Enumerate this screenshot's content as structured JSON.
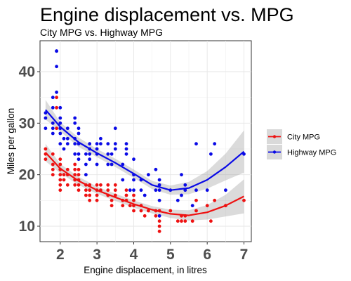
{
  "chart_data": {
    "type": "scatter",
    "title": "Engine displacement vs. MPG",
    "subtitle": "City MPG vs. Highway MPG",
    "xlabel": "Engine displacement, in litres",
    "ylabel": "Miles per gallon",
    "xlim": [
      1.45,
      7.2
    ],
    "ylim": [
      7,
      46
    ],
    "x_ticks": [
      2,
      3,
      4,
      5,
      6,
      7
    ],
    "y_ticks": [
      10,
      20,
      30,
      40
    ],
    "grid": true,
    "smooth": "loess with confidence band",
    "legend_position": "right",
    "series": [
      {
        "name": "City MPG",
        "color": "#ee1111",
        "points": [
          [
            1.6,
            24
          ],
          [
            1.6,
            23
          ],
          [
            1.6,
            25
          ],
          [
            1.8,
            21
          ],
          [
            1.8,
            20
          ],
          [
            1.8,
            22
          ],
          [
            1.8,
            24
          ],
          [
            1.9,
            33
          ],
          [
            1.9,
            35
          ],
          [
            1.9,
            29
          ],
          [
            2.0,
            21
          ],
          [
            2.0,
            19
          ],
          [
            2.0,
            20
          ],
          [
            2.0,
            22
          ],
          [
            2.0,
            23
          ],
          [
            2.0,
            18
          ],
          [
            2.0,
            17
          ],
          [
            2.0,
            21
          ],
          [
            2.1,
            20
          ],
          [
            2.1,
            19
          ],
          [
            2.2,
            21
          ],
          [
            2.2,
            20
          ],
          [
            2.2,
            18
          ],
          [
            2.4,
            21
          ],
          [
            2.4,
            20
          ],
          [
            2.4,
            19
          ],
          [
            2.4,
            18
          ],
          [
            2.4,
            22
          ],
          [
            2.5,
            19
          ],
          [
            2.5,
            20
          ],
          [
            2.5,
            18
          ],
          [
            2.5,
            21
          ],
          [
            2.5,
            17
          ],
          [
            2.7,
            18
          ],
          [
            2.7,
            17
          ],
          [
            2.7,
            16
          ],
          [
            2.8,
            17
          ],
          [
            2.8,
            16
          ],
          [
            2.8,
            18
          ],
          [
            2.8,
            15
          ],
          [
            3.0,
            17
          ],
          [
            3.0,
            16
          ],
          [
            3.0,
            18
          ],
          [
            3.0,
            15
          ],
          [
            3.1,
            18
          ],
          [
            3.1,
            17
          ],
          [
            3.3,
            16
          ],
          [
            3.3,
            17
          ],
          [
            3.3,
            18
          ],
          [
            3.4,
            15
          ],
          [
            3.4,
            14
          ],
          [
            3.5,
            16
          ],
          [
            3.5,
            17
          ],
          [
            3.5,
            18
          ],
          [
            3.7,
            15
          ],
          [
            3.7,
            14
          ],
          [
            3.8,
            16
          ],
          [
            3.8,
            17
          ],
          [
            3.8,
            15
          ],
          [
            3.9,
            14
          ],
          [
            4.0,
            14
          ],
          [
            4.0,
            15
          ],
          [
            4.0,
            16
          ],
          [
            4.0,
            13
          ],
          [
            4.2,
            14
          ],
          [
            4.2,
            13
          ],
          [
            4.3,
            12
          ],
          [
            4.4,
            13
          ],
          [
            4.6,
            12
          ],
          [
            4.6,
            13
          ],
          [
            4.7,
            11
          ],
          [
            4.7,
            9
          ],
          [
            4.7,
            12
          ],
          [
            4.7,
            13
          ],
          [
            4.7,
            10
          ],
          [
            5.0,
            13
          ],
          [
            5.2,
            11
          ],
          [
            5.3,
            11
          ],
          [
            5.3,
            12
          ],
          [
            5.4,
            11
          ],
          [
            5.4,
            12
          ],
          [
            5.6,
            11
          ],
          [
            5.7,
            13
          ],
          [
            5.7,
            15
          ],
          [
            6.0,
            14
          ],
          [
            6.1,
            11
          ],
          [
            6.2,
            15
          ],
          [
            6.5,
            14
          ],
          [
            7.0,
            15
          ]
        ],
        "trend": [
          [
            1.6,
            24.3
          ],
          [
            2.0,
            21.2
          ],
          [
            2.5,
            18.8
          ],
          [
            3.0,
            17.0
          ],
          [
            3.5,
            15.6
          ],
          [
            4.0,
            14.3
          ],
          [
            4.5,
            13.2
          ],
          [
            5.0,
            12.4
          ],
          [
            5.5,
            12.1
          ],
          [
            6.0,
            12.7
          ],
          [
            6.5,
            14.0
          ],
          [
            7.0,
            15.8
          ]
        ],
        "band": [
          [
            1.6,
            22.6,
            26.0
          ],
          [
            2.0,
            20.3,
            22.1
          ],
          [
            2.5,
            18.0,
            19.6
          ],
          [
            3.0,
            16.3,
            17.7
          ],
          [
            3.5,
            14.9,
            16.3
          ],
          [
            4.0,
            13.6,
            15.0
          ],
          [
            4.5,
            12.5,
            13.9
          ],
          [
            5.0,
            11.6,
            13.2
          ],
          [
            5.5,
            11.1,
            13.1
          ],
          [
            6.0,
            11.3,
            14.1
          ],
          [
            6.5,
            11.9,
            16.1
          ],
          [
            7.0,
            12.5,
            19.1
          ]
        ]
      },
      {
        "name": "Highway MPG",
        "color": "#0a0ae6",
        "points": [
          [
            1.6,
            32
          ],
          [
            1.6,
            31
          ],
          [
            1.6,
            29
          ],
          [
            1.8,
            28
          ],
          [
            1.8,
            29
          ],
          [
            1.8,
            30
          ],
          [
            1.8,
            33
          ],
          [
            1.8,
            35
          ],
          [
            1.9,
            44
          ],
          [
            1.9,
            41
          ],
          [
            1.9,
            36
          ],
          [
            1.9,
            44
          ],
          [
            2.0,
            29
          ],
          [
            2.0,
            30
          ],
          [
            2.0,
            31
          ],
          [
            2.0,
            26
          ],
          [
            2.0,
            28
          ],
          [
            2.0,
            33
          ],
          [
            2.1,
            27
          ],
          [
            2.1,
            25
          ],
          [
            2.2,
            26
          ],
          [
            2.2,
            27
          ],
          [
            2.2,
            29
          ],
          [
            2.4,
            26
          ],
          [
            2.4,
            27
          ],
          [
            2.4,
            30
          ],
          [
            2.4,
            31
          ],
          [
            2.4,
            24
          ],
          [
            2.5,
            26
          ],
          [
            2.5,
            28
          ],
          [
            2.5,
            29
          ],
          [
            2.5,
            24
          ],
          [
            2.5,
            23
          ],
          [
            2.7,
            24
          ],
          [
            2.7,
            20
          ],
          [
            2.7,
            22
          ],
          [
            2.8,
            24
          ],
          [
            2.8,
            26
          ],
          [
            2.8,
            25
          ],
          [
            2.8,
            23
          ],
          [
            3.0,
            26
          ],
          [
            3.0,
            25
          ],
          [
            3.0,
            24
          ],
          [
            3.0,
            22
          ],
          [
            3.1,
            26
          ],
          [
            3.1,
            27
          ],
          [
            3.3,
            24
          ],
          [
            3.3,
            22
          ],
          [
            3.3,
            26
          ],
          [
            3.4,
            24
          ],
          [
            3.4,
            22
          ],
          [
            3.5,
            25
          ],
          [
            3.5,
            26
          ],
          [
            3.5,
            29
          ],
          [
            3.7,
            19
          ],
          [
            3.7,
            22
          ],
          [
            3.8,
            26
          ],
          [
            3.8,
            25
          ],
          [
            3.8,
            24
          ],
          [
            3.9,
            17
          ],
          [
            4.0,
            17
          ],
          [
            4.0,
            19
          ],
          [
            4.0,
            20
          ],
          [
            4.0,
            23
          ],
          [
            4.2,
            17
          ],
          [
            4.2,
            19
          ],
          [
            4.3,
            16
          ],
          [
            4.4,
            20
          ],
          [
            4.6,
            17
          ],
          [
            4.6,
            21
          ],
          [
            4.7,
            17
          ],
          [
            4.7,
            15
          ],
          [
            4.7,
            18
          ],
          [
            4.7,
            19
          ],
          [
            4.7,
            12
          ],
          [
            5.0,
            17
          ],
          [
            5.2,
            15
          ],
          [
            5.3,
            16
          ],
          [
            5.3,
            20
          ],
          [
            5.4,
            17
          ],
          [
            5.4,
            18
          ],
          [
            5.6,
            14
          ],
          [
            5.7,
            17
          ],
          [
            5.7,
            26
          ],
          [
            6.0,
            17
          ],
          [
            6.1,
            24
          ],
          [
            6.2,
            26
          ],
          [
            6.5,
            17
          ],
          [
            7.0,
            24
          ]
        ],
        "trend": [
          [
            1.6,
            32.6
          ],
          [
            2.0,
            29.3
          ],
          [
            2.5,
            26.3
          ],
          [
            3.0,
            24.2
          ],
          [
            3.5,
            22.3
          ],
          [
            4.0,
            20.2
          ],
          [
            4.5,
            18.0
          ],
          [
            5.0,
            17.0
          ],
          [
            5.5,
            17.4
          ],
          [
            6.0,
            19.0
          ],
          [
            6.5,
            21.5
          ],
          [
            7.0,
            24.5
          ]
        ],
        "band": [
          [
            1.6,
            30.7,
            34.5
          ],
          [
            2.0,
            28.4,
            30.2
          ],
          [
            2.5,
            25.4,
            27.2
          ],
          [
            3.0,
            23.4,
            25.0
          ],
          [
            3.5,
            21.5,
            23.1
          ],
          [
            4.0,
            19.4,
            21.0
          ],
          [
            4.5,
            17.2,
            18.8
          ],
          [
            5.0,
            16.1,
            17.9
          ],
          [
            5.5,
            16.2,
            18.6
          ],
          [
            6.0,
            17.3,
            20.7
          ],
          [
            6.5,
            18.9,
            24.1
          ],
          [
            7.0,
            20.4,
            28.6
          ]
        ]
      }
    ]
  }
}
